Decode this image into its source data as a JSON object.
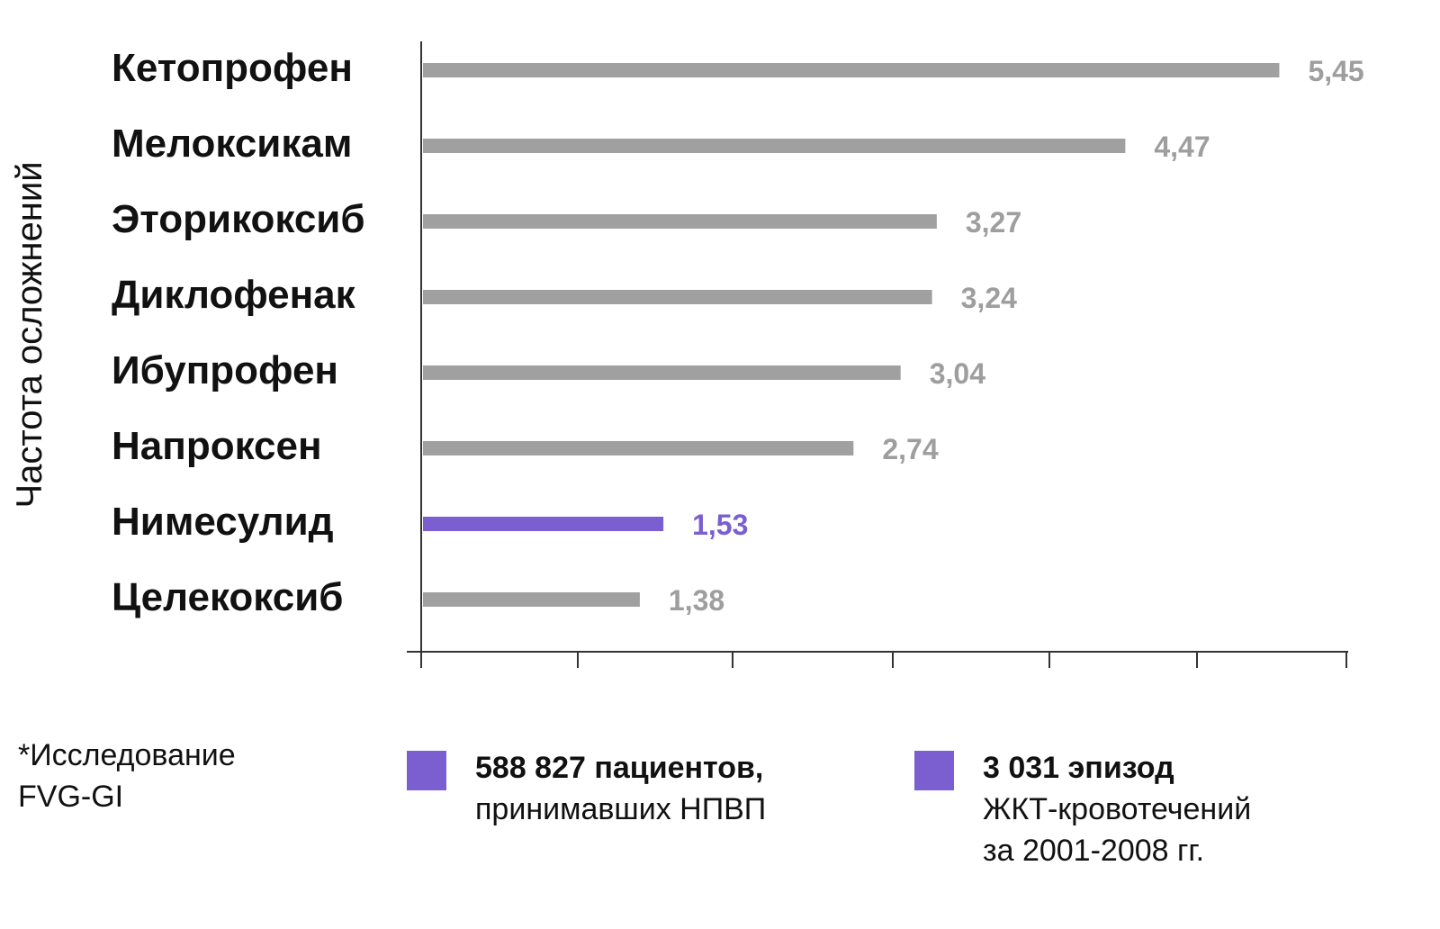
{
  "chart_data": {
    "type": "bar",
    "orientation": "horizontal",
    "ylabel": "Частота осложнений",
    "categories": [
      "Кетопрофен",
      "Мелоксикам",
      "Эторикоксиб",
      "Диклофенак",
      "Ибупрофен",
      "Напроксен",
      "Нимесулид",
      "Целекоксиб"
    ],
    "values": [
      5.45,
      4.47,
      3.27,
      3.24,
      3.04,
      2.74,
      1.53,
      1.38
    ],
    "value_labels": [
      "5,45",
      "4,47",
      "3,27",
      "3,24",
      "3,04",
      "2,74",
      "1,53",
      "1,38"
    ],
    "highlight_index": 6,
    "colors": {
      "bar": "#a0a0a0",
      "highlight": "#7b5fd1",
      "label": "#9e9e9e",
      "axis": "#333333"
    },
    "xlim": [
      0,
      5.9
    ],
    "grid": false,
    "legend_position": "bottom"
  },
  "note": {
    "line1": "*Исследование",
    "line2": "FVG-GI"
  },
  "legend": [
    {
      "bold": "588 827 пациентов,",
      "line2": "принимавших НПВП",
      "line3": "",
      "color": "#7b5fd1"
    },
    {
      "bold": "3 031 эпизод",
      "line2": "ЖКТ-кровотечений",
      "line3": "за 2001-2008 гг.",
      "color": "#7b5fd1"
    }
  ]
}
